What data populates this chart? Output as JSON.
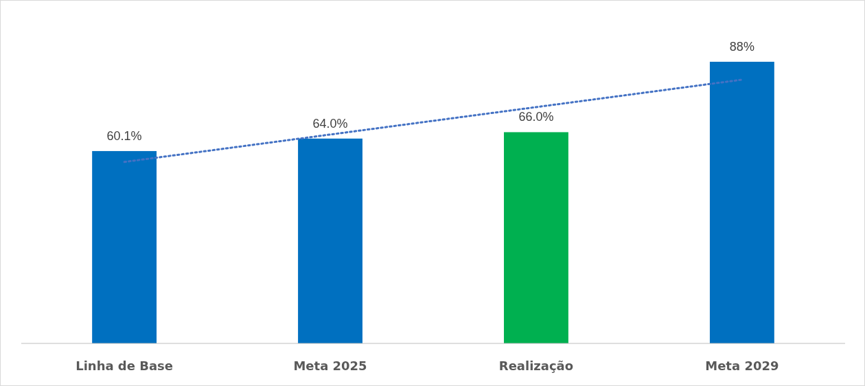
{
  "chart_data": {
    "type": "bar",
    "categories": [
      "Linha de Base",
      "Meta 2025",
      "Realização",
      "Meta 2029"
    ],
    "series": [
      {
        "colors": [
          "#0070c0",
          "#0070c0",
          "#00b050",
          "#0070c0"
        ],
        "values": [
          60.1,
          64.0,
          66.0,
          88
        ],
        "value_labels": [
          "60.1%",
          "64.0%",
          "66.0%",
          "88%"
        ]
      },
      {
        "type": "line",
        "x": [
          "Linha de Base",
          "Meta 2029"
        ],
        "values": [
          56.7,
          82.4
        ],
        "color": "#4472c4",
        "line_style": "dotted"
      }
    ]
  }
}
